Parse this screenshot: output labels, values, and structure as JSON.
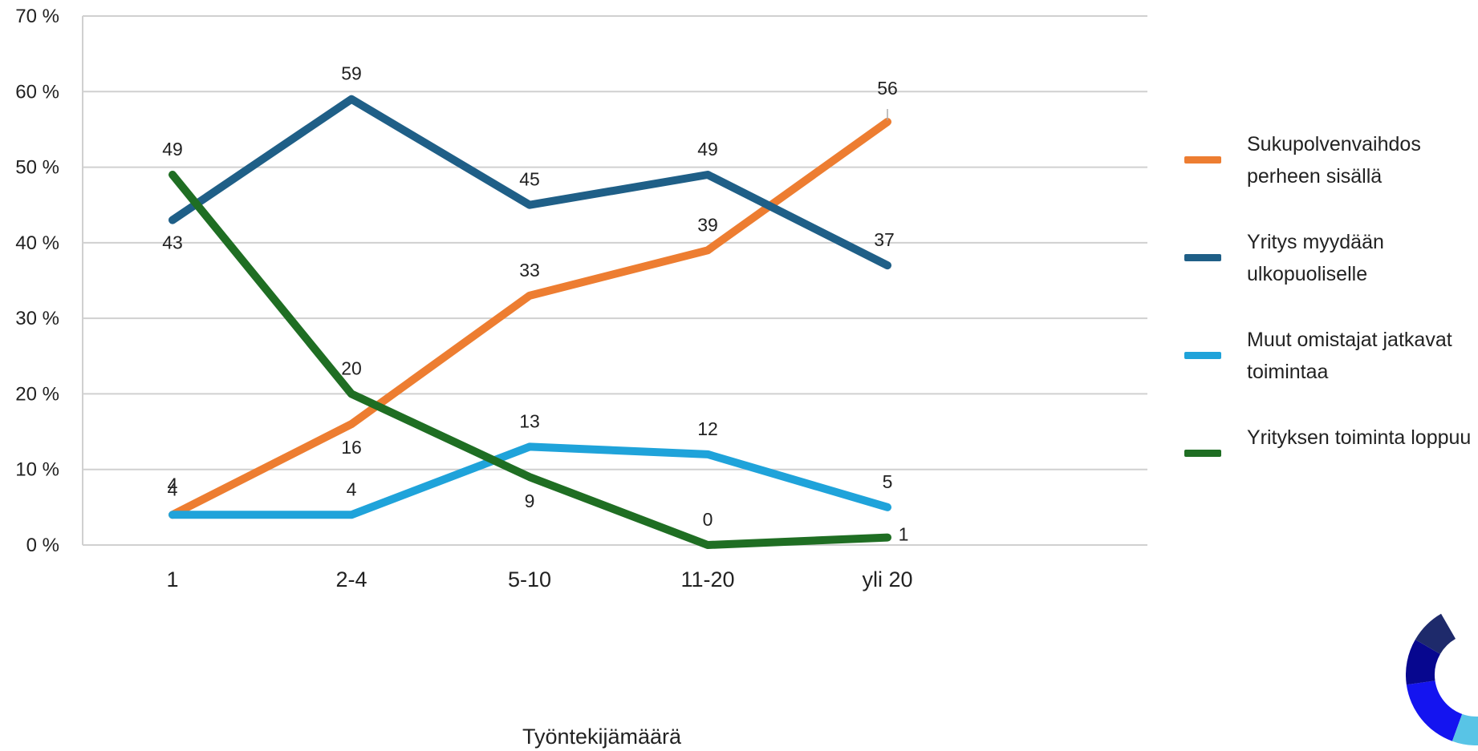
{
  "chart_data": {
    "type": "line",
    "categories": [
      "1",
      "2-4",
      "5-10",
      "11-20",
      "yli 20"
    ],
    "xlabel": "Työntekijämäärä",
    "ylabel": "",
    "ylim": [
      0,
      70
    ],
    "yticks": [
      "0 %",
      "10 %",
      "20 %",
      "30 %",
      "40 %",
      "50 %",
      "60 %",
      "70 %"
    ],
    "grid": true,
    "legend_position": "right",
    "series": [
      {
        "name": "Sukupolvenvaihdos perheen sisällä",
        "color": "#ED7D31",
        "values": [
          4,
          16,
          33,
          39,
          56
        ],
        "labels": [
          "4",
          "16",
          "33",
          "39",
          "56"
        ]
      },
      {
        "name": "Yritys myydään ulkopuoliselle",
        "color": "#1F5F87",
        "values": [
          43,
          59,
          45,
          49,
          37
        ],
        "labels": [
          "43",
          "59",
          "45",
          "49",
          "37"
        ]
      },
      {
        "name": "Muut omistajat jatkavat toimintaa",
        "color": "#1FA3DA",
        "values": [
          4,
          4,
          13,
          12,
          5
        ],
        "labels": [
          "4",
          "4",
          "13",
          "12",
          "5"
        ]
      },
      {
        "name": "Yrityksen toiminta loppuu",
        "color": "#1F6E23",
        "values": [
          49,
          20,
          9,
          0,
          1
        ],
        "labels": [
          "49",
          "20",
          "9",
          "0",
          "1"
        ]
      }
    ]
  },
  "legend": {
    "items": [
      {
        "label": "Sukupolvenvaihdos perheen sisällä",
        "color": "#ED7D31"
      },
      {
        "label": "Yritys myydään ulkopuoliselle",
        "color": "#1F5F87"
      },
      {
        "label": "Muut omistajat jatkavat toimintaa",
        "color": "#1FA3DA"
      },
      {
        "label": "Yrityksen toiminta loppuu",
        "color": "#1F6E23"
      }
    ]
  },
  "logo": {
    "icon": "ring-logo-icon",
    "colors": [
      "#1414F0",
      "#07078F",
      "#1E2A6B",
      "#58C4E6",
      "#B8C400"
    ]
  }
}
